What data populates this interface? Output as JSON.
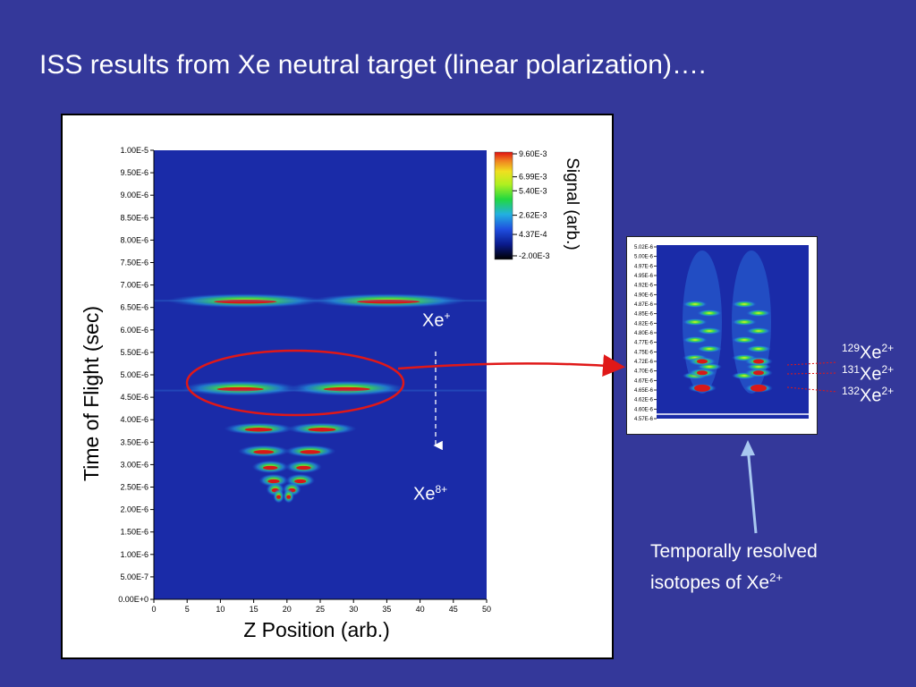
{
  "slide": {
    "title": "ISS results from Xe neutral target (linear polarization)…."
  },
  "colors": {
    "background": "#34389a",
    "plot_background": "#1a2ba8",
    "band_hot": "#d81818",
    "arrow_red": "#e01818",
    "arrow_blue": "#a8c8f0"
  },
  "chart_data": [
    {
      "type": "heatmap",
      "title": "",
      "xlabel": "Z Position (arb.)",
      "ylabel": "Time of Flight (sec)",
      "xlim": [
        0,
        50
      ],
      "ylim": [
        0,
        1e-05
      ],
      "x_ticks": [
        "0",
        "5",
        "10",
        "15",
        "20",
        "25",
        "30",
        "35",
        "40",
        "45",
        "50"
      ],
      "y_ticks": [
        "0.00E+0",
        "5.00E-7",
        "1.00E-6",
        "1.50E-6",
        "2.00E-6",
        "2.50E-6",
        "3.00E-6",
        "3.50E-6",
        "4.00E-6",
        "4.50E-6",
        "5.00E-6",
        "5.50E-6",
        "6.00E-6",
        "6.50E-6",
        "7.00E-6",
        "7.50E-6",
        "8.00E-6",
        "8.50E-6",
        "9.00E-6",
        "9.50E-6",
        "1.00E-5"
      ],
      "colorbar": {
        "label": "Signal (arb.)",
        "ticks": [
          "9.60E-3",
          "6.99E-3",
          "5.40E-3",
          "2.62E-3",
          "4.37E-4",
          "-2.00E-3"
        ],
        "tick_values": [
          0.0096,
          0.00699,
          0.0054,
          0.00262,
          0.000437,
          -0.002
        ]
      },
      "bands": [
        {
          "tof": 6.65e-06,
          "z_min": 3,
          "z_max": 46,
          "intensity": 0.9
        },
        {
          "tof": 4.7e-06,
          "z_min": 5,
          "z_max": 37,
          "intensity": 0.95
        },
        {
          "tof": 3.8e-06,
          "z_min": 11,
          "z_max": 30,
          "intensity": 0.75
        },
        {
          "tof": 3.3e-06,
          "z_min": 13,
          "z_max": 27,
          "intensity": 0.75
        },
        {
          "tof": 2.95e-06,
          "z_min": 15,
          "z_max": 25,
          "intensity": 0.8
        },
        {
          "tof": 2.65e-06,
          "z_min": 16,
          "z_max": 24,
          "intensity": 0.8
        },
        {
          "tof": 2.45e-06,
          "z_min": 17,
          "z_max": 22,
          "intensity": 0.85
        },
        {
          "tof": 2.3e-06,
          "z_min": 18,
          "z_max": 21,
          "intensity": 0.9
        }
      ]
    },
    {
      "type": "heatmap",
      "title": "",
      "y_ticks": [
        "5.02E-6",
        "5.00E-6",
        "4.97E-6",
        "4.95E-6",
        "4.92E-6",
        "4.90E-6",
        "4.87E-6",
        "4.85E-6",
        "4.82E-6",
        "4.80E-6",
        "4.77E-6",
        "4.75E-6",
        "4.72E-6",
        "4.70E-6",
        "4.67E-6",
        "4.65E-6",
        "4.62E-6",
        "4.60E-6",
        "4.57E-6"
      ],
      "isotope_rows": [
        4.72e-06,
        4.69e-06,
        4.65e-06
      ]
    }
  ],
  "annotations": {
    "xe_plus": {
      "sym": "Xe",
      "charge": "+"
    },
    "xe_8plus": {
      "sym": "Xe",
      "charge": "8+"
    },
    "isotopes": [
      {
        "mass": "129",
        "sym": "Xe",
        "charge": "2+"
      },
      {
        "mass": "131",
        "sym": "Xe",
        "charge": "2+"
      },
      {
        "mass": "132",
        "sym": "Xe",
        "charge": "2+"
      }
    ],
    "caption_line1": "Temporally resolved",
    "caption_line2": "isotopes of Xe",
    "caption_charge": "2+"
  }
}
